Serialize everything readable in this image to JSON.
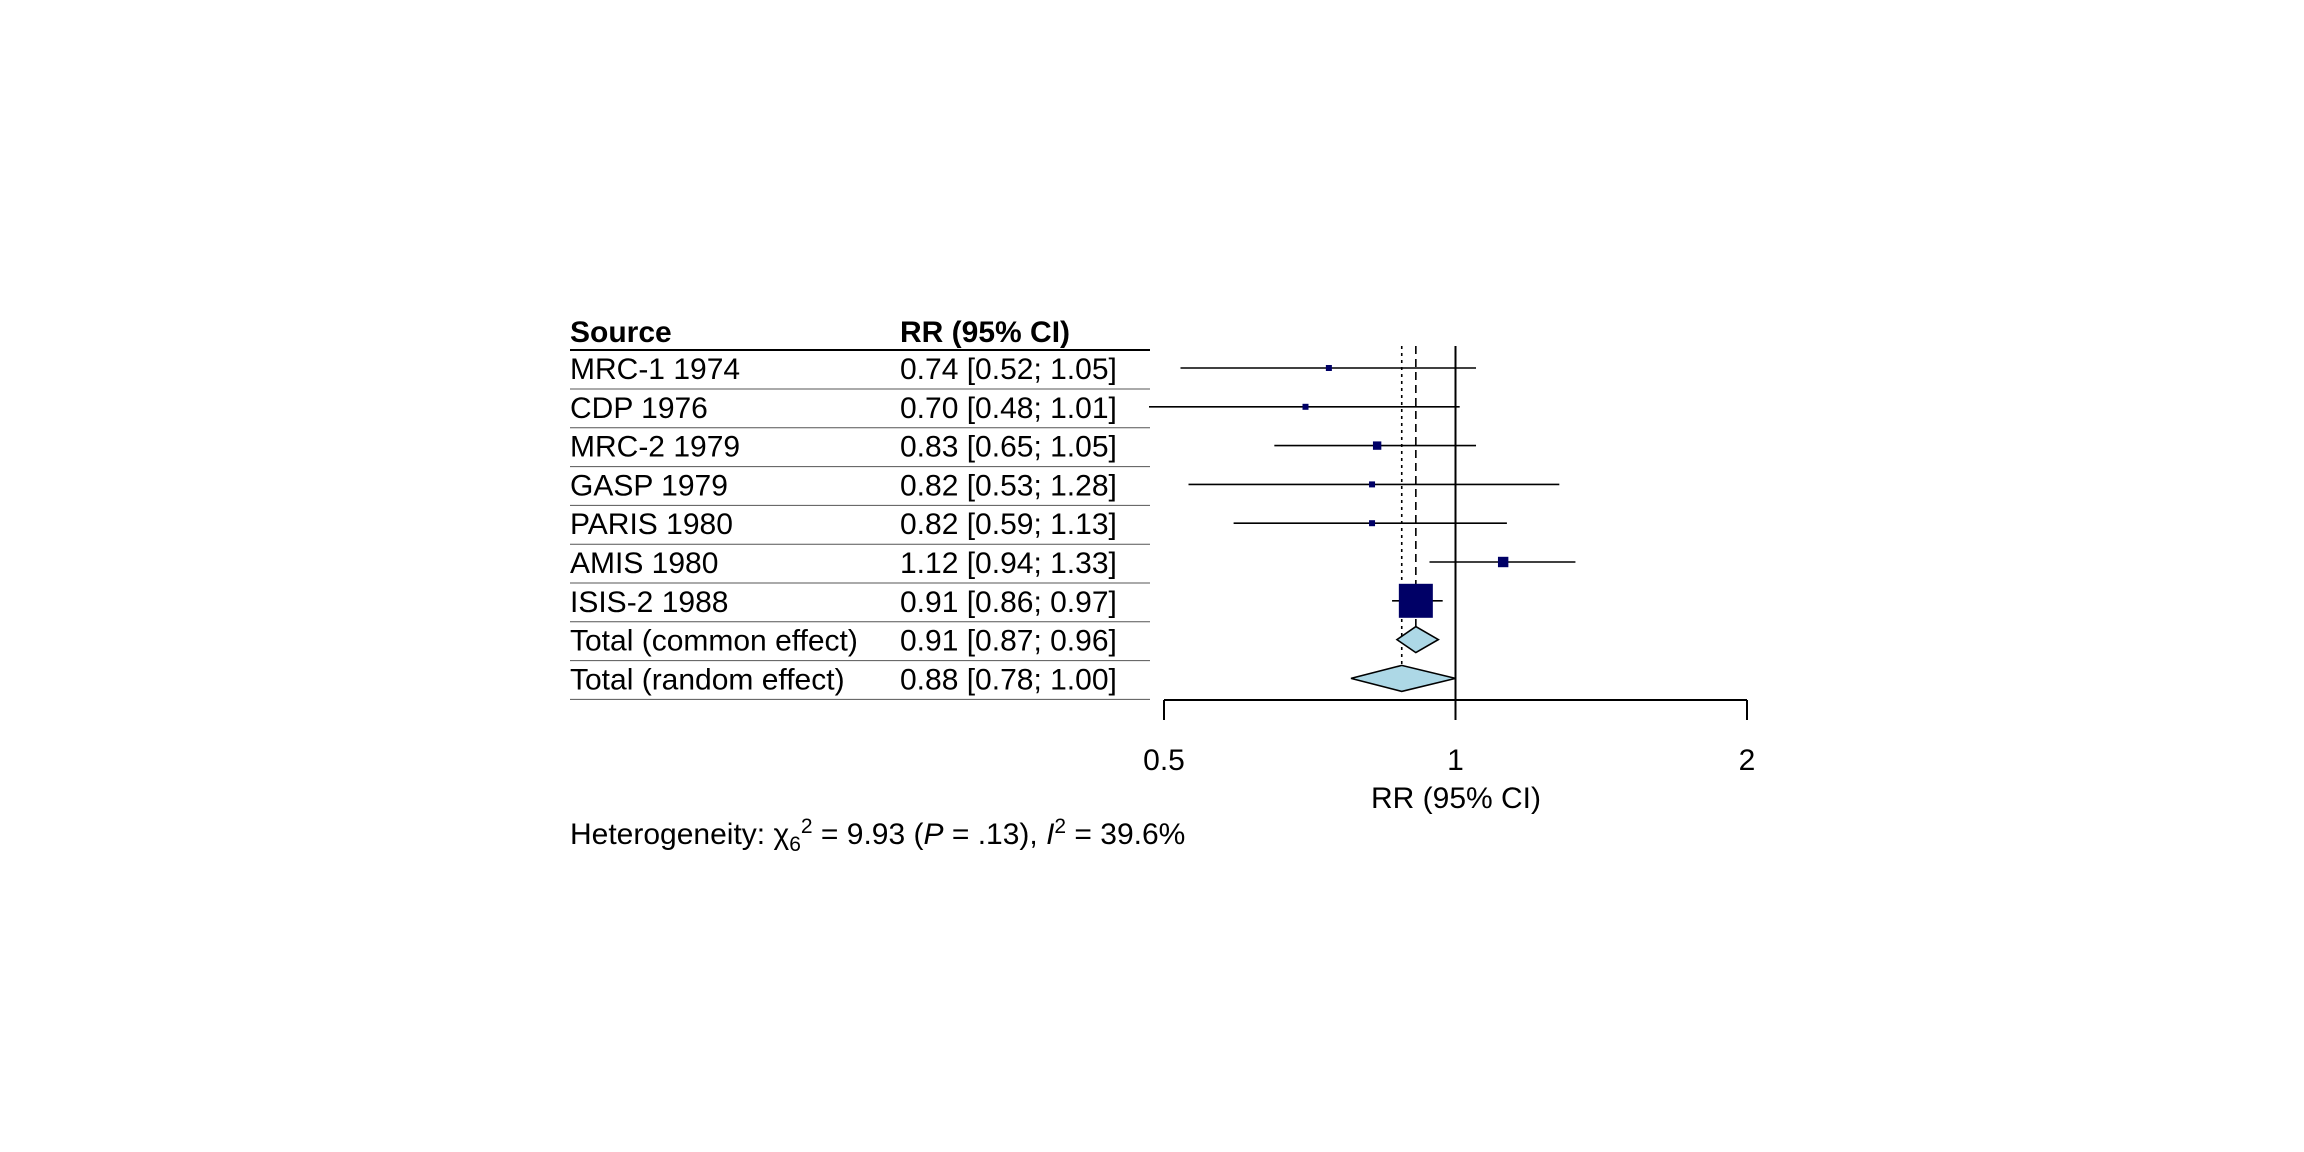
{
  "chart_data": {
    "type": "forest",
    "columns": {
      "source": "Source",
      "estimate": "RR (95% CI)"
    },
    "studies": [
      {
        "label": "MRC-1 1974",
        "text": "0.74 [0.52; 1.05]",
        "est": 0.74,
        "lo": 0.52,
        "hi": 1.05,
        "weight": 1.0
      },
      {
        "label": "CDP 1976",
        "text": "0.70 [0.48; 1.01]",
        "est": 0.7,
        "lo": 0.48,
        "hi": 1.01,
        "weight": 1.0
      },
      {
        "label": "MRC-2 1979",
        "text": "0.83 [0.65; 1.05]",
        "est": 0.83,
        "lo": 0.65,
        "hi": 1.05,
        "weight": 2.6
      },
      {
        "label": "GASP 1979",
        "text": "0.82 [0.53; 1.28]",
        "est": 0.82,
        "lo": 0.53,
        "hi": 1.28,
        "weight": 0.8
      },
      {
        "label": "PARIS 1980",
        "text": "0.82 [0.59; 1.13]",
        "est": 0.82,
        "lo": 0.59,
        "hi": 1.13,
        "weight": 1.2
      },
      {
        "label": "AMIS 1980",
        "text": "1.12 [0.94; 1.33]",
        "est": 1.12,
        "lo": 0.94,
        "hi": 1.33,
        "weight": 4.0
      },
      {
        "label": "ISIS-2 1988",
        "text": "0.91 [0.86; 0.97]",
        "est": 0.91,
        "lo": 0.86,
        "hi": 0.97,
        "weight": 44.0
      }
    ],
    "summaries": [
      {
        "label": "Total (common effect)",
        "text": "0.91 [0.87; 0.96]",
        "est": 0.91,
        "lo": 0.87,
        "hi": 0.96,
        "line": "dashed"
      },
      {
        "label": "Total (random effect)",
        "text": "0.88 [0.78; 1.00]",
        "est": 0.88,
        "lo": 0.78,
        "hi": 1.0,
        "line": "dotted"
      }
    ],
    "x_scale": "log",
    "xlim": [
      0.5,
      2
    ],
    "xticks": [
      0.5,
      1,
      2
    ],
    "xtick_labels": [
      "0.5",
      "1",
      "2"
    ],
    "xlabel": "RR (95% CI)",
    "reference_line": 1,
    "colors": {
      "study_square": "#000066",
      "summary_diamond": "#add8e6",
      "line": "#000000"
    }
  },
  "heterogeneity": {
    "prefix": "Heterogeneity: ",
    "chi_symbol": "χ",
    "chi_sub": "6",
    "chi_sup": "2",
    "chi_value": " = 9.93 (",
    "p_symbol": "P",
    "p_value": " = .13), ",
    "i_symbol": "I",
    "i_sup": "2",
    "i_value": " = 39.6%"
  }
}
